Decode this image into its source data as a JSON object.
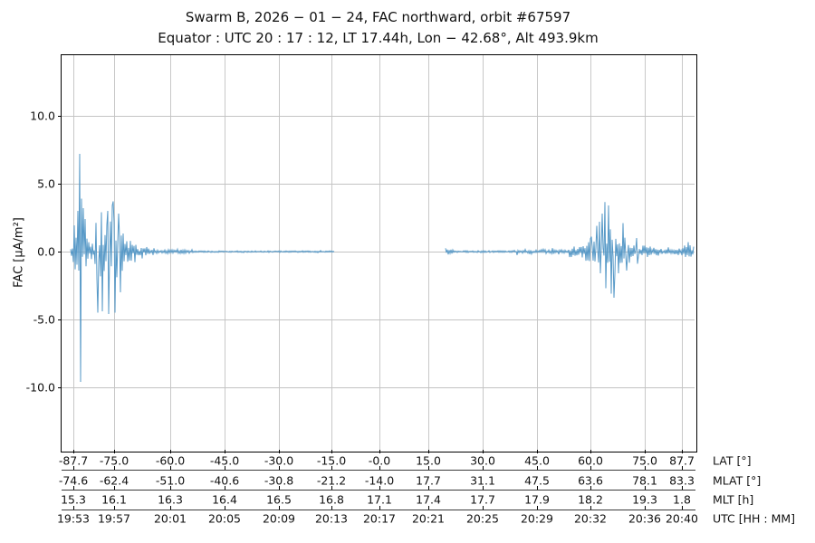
{
  "title": {
    "line1": "Swarm B,  2026 − 01 − 24,  FAC northward,  orbit #67597",
    "line2": "Equator :  UTC 20 : 17 : 12,  LT 17.44h,  Lon  − 42.68°,  Alt 493.9km"
  },
  "chart_data": {
    "type": "line",
    "title": "Swarm B,  2026 − 01 − 24,  FAC northward,  orbit #67597",
    "subtitle": "Equator :  UTC 20 : 17 : 12,  LT 17.44h,  Lon  − 42.68°,  Alt 493.9km",
    "ylabel": "FAC [μA/m²]",
    "ylim": [
      -14.6,
      14.5
    ],
    "yticks": [
      "10.0",
      "5.0",
      "0.0",
      "-5.0",
      "-10.0"
    ],
    "ytick_values": [
      10,
      5,
      0,
      -5,
      -10
    ],
    "grid": true,
    "x_rows": [
      {
        "label": "LAT [°]",
        "values": [
          "-87.7",
          "-75.0",
          "-60.0",
          "-45.0",
          "-30.0",
          "-15.0",
          "-0.0",
          "15.0",
          "30.0",
          "45.0",
          "60.0",
          "75.0",
          "87.7"
        ]
      },
      {
        "label": "MLAT [°]",
        "values": [
          "-74.6",
          "-62.4",
          "-51.0",
          "-40.6",
          "-30.8",
          "-21.2",
          "-14.0",
          "17.7",
          "31.1",
          "47.5",
          "63.6",
          "78.1",
          "83.3"
        ]
      },
      {
        "label": "MLT [h]",
        "values": [
          "15.3",
          "16.1",
          "16.3",
          "16.4",
          "16.5",
          "16.8",
          "17.1",
          "17.4",
          "17.7",
          "17.9",
          "18.2",
          "19.3",
          "1.8"
        ]
      },
      {
        "label": "UTC [HH : MM]",
        "values": [
          "19:53",
          "19:57",
          "20:01",
          "20:05",
          "20:09",
          "20:13",
          "20:17",
          "20:21",
          "20:25",
          "20:29",
          "20:32",
          "20:36",
          "20:40"
        ]
      }
    ],
    "colors": {
      "line": "#5799c7",
      "grid": "#c3c3c3",
      "spine": "#000000",
      "text": "#111111"
    },
    "series_approx": {
      "unit": "μA/m²",
      "note": "x given as fraction of time axis (19:53–20:40); noise envelope amplitude ±amp with data gap between frac 0.431 and 0.607",
      "segments": [
        {
          "f0": 0.0143,
          "f1": 0.0172,
          "amp": 0.5
        },
        {
          "f0": 0.0172,
          "f1": 0.0401,
          "amp": 1.5
        },
        {
          "f0": 0.0401,
          "f1": 0.0515,
          "amp": 0.7
        },
        {
          "f0": 0.0515,
          "f1": 0.0987,
          "amp": 2.2
        },
        {
          "f0": 0.0987,
          "f1": 0.1173,
          "amp": 0.8
        },
        {
          "f0": 0.1173,
          "f1": 0.1459,
          "amp": 0.35
        },
        {
          "f0": 0.1459,
          "f1": 0.2103,
          "amp": 0.15
        },
        {
          "f0": 0.2103,
          "f1": 0.4306,
          "amp": 0.06
        },
        {
          "f0": 0.6066,
          "f1": 0.618,
          "amp": 0.25
        },
        {
          "f0": 0.618,
          "f1": 0.7182,
          "amp": 0.07
        },
        {
          "f0": 0.7182,
          "f1": 0.8011,
          "amp": 0.18
        },
        {
          "f0": 0.8011,
          "f1": 0.8255,
          "amp": 0.45
        },
        {
          "f0": 0.8255,
          "f1": 0.8469,
          "amp": 1.1
        },
        {
          "f0": 0.8469,
          "f1": 0.8755,
          "amp": 1.7
        },
        {
          "f0": 0.8755,
          "f1": 0.897,
          "amp": 0.9
        },
        {
          "f0": 0.897,
          "f1": 0.9328,
          "amp": 0.45
        },
        {
          "f0": 0.9328,
          "f1": 0.9828,
          "amp": 0.28
        },
        {
          "f0": 0.9828,
          "f1": 0.9986,
          "amp": 0.5
        }
      ],
      "spikes": [
        {
          "f": 0.0258,
          "v": 3.0
        },
        {
          "f": 0.0286,
          "v": 7.2
        },
        {
          "f": 0.03,
          "v": -9.6
        },
        {
          "f": 0.0315,
          "v": 3.9
        },
        {
          "f": 0.0343,
          "v": 3.2
        },
        {
          "f": 0.0372,
          "v": 2.4
        },
        {
          "f": 0.0572,
          "v": -4.5
        },
        {
          "f": 0.063,
          "v": 2.9
        },
        {
          "f": 0.0644,
          "v": -4.4
        },
        {
          "f": 0.073,
          "v": 3.0
        },
        {
          "f": 0.0744,
          "v": -4.6
        },
        {
          "f": 0.0801,
          "v": 3.4
        },
        {
          "f": 0.0815,
          "v": 3.7
        },
        {
          "f": 0.0844,
          "v": -4.5
        },
        {
          "f": 0.0901,
          "v": 2.8
        },
        {
          "f": 0.093,
          "v": -3.0
        },
        {
          "f": 0.8369,
          "v": 1.1
        },
        {
          "f": 0.8455,
          "v": 1.9
        },
        {
          "f": 0.8498,
          "v": 2.2
        },
        {
          "f": 0.8541,
          "v": 2.8
        },
        {
          "f": 0.8584,
          "v": 3.65
        },
        {
          "f": 0.8598,
          "v": -2.7
        },
        {
          "f": 0.8641,
          "v": 3.4
        },
        {
          "f": 0.8684,
          "v": -3.1
        },
        {
          "f": 0.8727,
          "v": -3.4
        },
        {
          "f": 0.8798,
          "v": -1.6
        },
        {
          "f": 0.887,
          "v": 2.1
        },
        {
          "f": 0.8927,
          "v": -1.4
        },
        {
          "f": 0.9084,
          "v": 1.0
        },
        {
          "f": 0.9099,
          "v": -0.9
        },
        {
          "f": 0.99,
          "v": 0.7
        }
      ]
    }
  }
}
